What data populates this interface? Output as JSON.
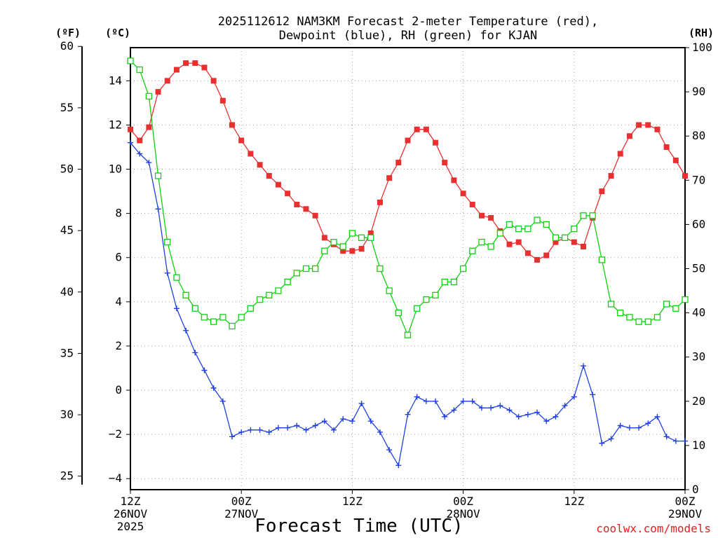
{
  "chart_data": {
    "type": "line",
    "title_line1": "2025112612 NAM3KM Forecast 2-meter Temperature (red),",
    "title_line2": "Dewpoint (blue), RH (green) for KJAN",
    "axis_units": {
      "fahrenheit": "(ºF)",
      "celsius": "(ºC)",
      "rh": "(RH)"
    },
    "xlabel": "Forecast Time (UTC)",
    "credit": "coolwx.com/models",
    "x_range_hours": [
      0,
      60
    ],
    "celsius_axis": {
      "ylim": [
        -4.5,
        15.5
      ],
      "ticks": [
        -4,
        -2,
        0,
        2,
        4,
        6,
        8,
        10,
        12,
        14
      ],
      "tick_labels": [
        "−4",
        "−2",
        "0",
        "2",
        "4",
        "6",
        "8",
        "10",
        "12",
        "14"
      ]
    },
    "fahrenheit_axis": {
      "ticks": [
        25,
        30,
        35,
        40,
        45,
        50,
        55,
        60
      ],
      "tick_labels": [
        "25",
        "30",
        "35",
        "40",
        "45",
        "50",
        "55",
        "60"
      ]
    },
    "rh_axis": {
      "ylim": [
        0,
        100
      ],
      "ticks": [
        0,
        10,
        20,
        30,
        40,
        50,
        60,
        70,
        80,
        90,
        100
      ],
      "tick_labels": [
        "0",
        "10",
        "20",
        "30",
        "40",
        "50",
        "60",
        "70",
        "80",
        "90",
        "100"
      ]
    },
    "x_ticks": [
      {
        "hour": 0,
        "lines": [
          "12Z",
          "26NOV",
          "2025"
        ]
      },
      {
        "hour": 12,
        "lines": [
          "00Z",
          "27NOV"
        ]
      },
      {
        "hour": 24,
        "lines": [
          "12Z",
          ""
        ]
      },
      {
        "hour": 36,
        "lines": [
          "00Z",
          "28NOV"
        ]
      },
      {
        "hour": 48,
        "lines": [
          "12Z",
          ""
        ]
      },
      {
        "hour": 60,
        "lines": [
          "00Z",
          "29NOV"
        ]
      }
    ],
    "series": [
      {
        "name": "2-meter Temperature",
        "axis": "celsius",
        "color": "#e83030",
        "marker": "filled-square",
        "values": [
          11.8,
          11.3,
          11.9,
          13.5,
          14.0,
          14.5,
          14.8,
          14.8,
          14.6,
          14.0,
          13.1,
          12.0,
          11.3,
          10.7,
          10.2,
          9.7,
          9.3,
          8.9,
          8.4,
          8.2,
          7.9,
          6.9,
          6.6,
          6.3,
          6.3,
          6.4,
          7.1,
          8.5,
          9.6,
          10.3,
          11.3,
          11.8,
          11.8,
          11.2,
          10.3,
          9.5,
          8.9,
          8.4,
          7.9,
          7.8,
          7.2,
          6.6,
          6.7,
          6.2,
          5.9,
          6.1,
          6.7,
          6.9,
          6.7,
          6.5,
          7.8,
          9.0,
          9.7,
          10.7,
          11.5,
          12.0,
          12.0,
          11.8,
          11.0,
          10.4,
          9.7
        ]
      },
      {
        "name": "Dewpoint",
        "axis": "celsius",
        "color": "#2040e0",
        "marker": "plus",
        "values": [
          11.2,
          10.7,
          10.3,
          8.2,
          5.3,
          3.7,
          2.7,
          1.7,
          0.9,
          0.1,
          -0.5,
          -2.1,
          -1.9,
          -1.8,
          -1.8,
          -1.9,
          -1.7,
          -1.7,
          -1.6,
          -1.8,
          -1.6,
          -1.4,
          -1.8,
          -1.3,
          -1.4,
          -0.6,
          -1.4,
          -1.9,
          -2.7,
          -3.4,
          -1.1,
          -0.3,
          -0.5,
          -0.5,
          -1.2,
          -0.9,
          -0.5,
          -0.5,
          -0.8,
          -0.8,
          -0.7,
          -0.9,
          -1.2,
          -1.1,
          -1.0,
          -1.4,
          -1.2,
          -0.7,
          -0.3,
          1.1,
          -0.2,
          -2.4,
          -2.2,
          -1.6,
          -1.7,
          -1.7,
          -1.5,
          -1.2,
          -2.1,
          -2.3,
          -2.3
        ]
      },
      {
        "name": "RH",
        "axis": "rh",
        "color": "#10d010",
        "marker": "open-square",
        "values": [
          97,
          95,
          89,
          71,
          56,
          48,
          44,
          41,
          39,
          38,
          39,
          37,
          39,
          41,
          43,
          44,
          45,
          47,
          49,
          50,
          50,
          54,
          56,
          55,
          58,
          57,
          57,
          50,
          45,
          40,
          35,
          41,
          43,
          44,
          47,
          47,
          50,
          54,
          56,
          55,
          58,
          60,
          59,
          59,
          61,
          60,
          57,
          57,
          59,
          62,
          62,
          52,
          42,
          40,
          39,
          38,
          38,
          39,
          42,
          41,
          43
        ]
      }
    ]
  }
}
